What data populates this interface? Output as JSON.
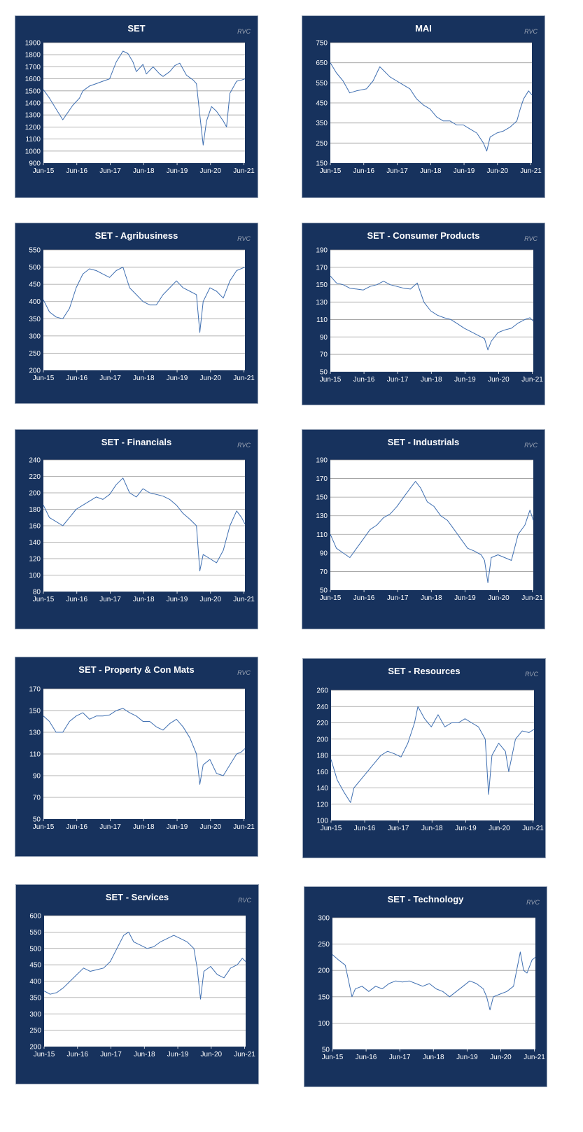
{
  "colors": {
    "panel": "#17325d",
    "plot_bg": "#ffffff",
    "grid": "#9a9a9a",
    "line": "#3f6fb1",
    "text": "#ffffff",
    "brand": "#9aa3b3"
  },
  "brand_label": "RVC",
  "chart_data": [
    {
      "type": "line",
      "title": "SET",
      "xlabel": "",
      "ylabel": "",
      "grid": true,
      "ylim": [
        900,
        1900
      ],
      "yticks": [
        900,
        1000,
        1100,
        1200,
        1300,
        1400,
        1500,
        1600,
        1700,
        1800,
        1900
      ],
      "xticks": [
        "Jun-15",
        "Jun-16",
        "Jun-17",
        "Jun-18",
        "Jun-19",
        "Jun-20",
        "Jun-21"
      ],
      "series": [
        {
          "x": [
            2015.42,
            2015.6,
            2015.8,
            2016.0,
            2016.1,
            2016.3,
            2016.5,
            2016.6,
            2016.8,
            2017.0,
            2017.2,
            2017.4,
            2017.6,
            2017.8,
            2017.95,
            2018.1,
            2018.2,
            2018.4,
            2018.5,
            2018.7,
            2018.9,
            2019.0,
            2019.2,
            2019.35,
            2019.5,
            2019.7,
            2019.9,
            2020.0,
            2020.1,
            2020.2,
            2020.3,
            2020.45,
            2020.6,
            2020.8,
            2020.9,
            2021.0,
            2021.2,
            2021.35,
            2021.45
          ],
          "y": [
            1510,
            1440,
            1350,
            1260,
            1300,
            1380,
            1440,
            1500,
            1540,
            1560,
            1580,
            1600,
            1740,
            1830,
            1810,
            1740,
            1660,
            1720,
            1640,
            1700,
            1640,
            1620,
            1660,
            1710,
            1730,
            1630,
            1590,
            1560,
            1300,
            1050,
            1250,
            1370,
            1330,
            1250,
            1200,
            1480,
            1580,
            1590,
            1600
          ]
        }
      ]
    },
    {
      "type": "line",
      "title": "MAI",
      "xlabel": "",
      "ylabel": "",
      "grid": true,
      "ylim": [
        150,
        750
      ],
      "yticks": [
        150,
        250,
        350,
        450,
        550,
        650,
        750
      ],
      "xticks": [
        "Jun-15",
        "Jun-16",
        "Jun-17",
        "Jun-18",
        "Jun-19",
        "Jun-20",
        "Jun-21"
      ],
      "series": [
        {
          "x": [
            2015.42,
            2015.6,
            2015.8,
            2016.0,
            2016.2,
            2016.5,
            2016.7,
            2016.9,
            2017.2,
            2017.4,
            2017.6,
            2017.8,
            2018.0,
            2018.2,
            2018.4,
            2018.6,
            2018.8,
            2019.0,
            2019.2,
            2019.4,
            2019.6,
            2019.8,
            2020.0,
            2020.1,
            2020.2,
            2020.4,
            2020.6,
            2020.8,
            2021.0,
            2021.1,
            2021.2,
            2021.35,
            2021.45
          ],
          "y": [
            650,
            600,
            560,
            500,
            510,
            520,
            560,
            630,
            580,
            560,
            540,
            520,
            470,
            440,
            420,
            380,
            360,
            360,
            340,
            340,
            320,
            300,
            250,
            210,
            280,
            300,
            310,
            330,
            360,
            420,
            470,
            510,
            490
          ]
        }
      ]
    },
    {
      "type": "line",
      "title": "SET - Agribusiness",
      "xlabel": "",
      "ylabel": "",
      "grid": true,
      "ylim": [
        200,
        550
      ],
      "yticks": [
        200,
        250,
        300,
        350,
        400,
        450,
        500,
        550
      ],
      "xticks": [
        "Jun-15",
        "Jun-16",
        "Jun-17",
        "Jun-18",
        "Jun-19",
        "Jun-20",
        "Jun-21"
      ],
      "series": [
        {
          "x": [
            2015.42,
            2015.6,
            2015.8,
            2016.0,
            2016.2,
            2016.4,
            2016.6,
            2016.8,
            2017.0,
            2017.2,
            2017.4,
            2017.6,
            2017.8,
            2018.0,
            2018.2,
            2018.4,
            2018.6,
            2018.8,
            2019.0,
            2019.2,
            2019.4,
            2019.6,
            2019.8,
            2020.0,
            2020.1,
            2020.2,
            2020.4,
            2020.6,
            2020.8,
            2021.0,
            2021.2,
            2021.45
          ],
          "y": [
            405,
            370,
            355,
            350,
            380,
            440,
            480,
            495,
            490,
            480,
            470,
            490,
            500,
            440,
            420,
            400,
            390,
            390,
            420,
            440,
            460,
            440,
            430,
            420,
            310,
            400,
            440,
            430,
            410,
            460,
            490,
            500
          ]
        }
      ]
    },
    {
      "type": "line",
      "title": "SET - Consumer Products",
      "xlabel": "",
      "ylabel": "",
      "grid": true,
      "ylim": [
        50,
        190
      ],
      "yticks": [
        50,
        70,
        90,
        110,
        130,
        150,
        170,
        190
      ],
      "xticks": [
        "Jun-15",
        "Jun-16",
        "Jun-17",
        "Jun-18",
        "Jun-19",
        "Jun-20",
        "Jun-21"
      ],
      "series": [
        {
          "x": [
            2015.42,
            2015.6,
            2015.8,
            2016.0,
            2016.2,
            2016.4,
            2016.6,
            2016.8,
            2017.0,
            2017.2,
            2017.4,
            2017.6,
            2017.8,
            2018.0,
            2018.2,
            2018.4,
            2018.6,
            2018.8,
            2019.0,
            2019.2,
            2019.4,
            2019.6,
            2019.8,
            2020.0,
            2020.1,
            2020.2,
            2020.4,
            2020.6,
            2020.8,
            2021.0,
            2021.2,
            2021.35,
            2021.45
          ],
          "y": [
            160,
            152,
            150,
            146,
            145,
            144,
            148,
            150,
            154,
            150,
            148,
            146,
            145,
            152,
            130,
            120,
            115,
            112,
            110,
            105,
            100,
            96,
            92,
            88,
            75,
            85,
            95,
            98,
            100,
            106,
            110,
            112,
            108
          ]
        }
      ]
    },
    {
      "type": "line",
      "title": "SET - Financials",
      "xlabel": "",
      "ylabel": "",
      "grid": true,
      "ylim": [
        80,
        240
      ],
      "yticks": [
        80,
        100,
        120,
        140,
        160,
        180,
        200,
        220,
        240
      ],
      "xticks": [
        "Jun-15",
        "Jun-16",
        "Jun-17",
        "Jun-18",
        "Jun-19",
        "Jun-20",
        "Jun-21"
      ],
      "series": [
        {
          "x": [
            2015.42,
            2015.6,
            2015.8,
            2016.0,
            2016.2,
            2016.4,
            2016.6,
            2016.8,
            2017.0,
            2017.2,
            2017.4,
            2017.6,
            2017.8,
            2018.0,
            2018.2,
            2018.4,
            2018.6,
            2018.8,
            2019.0,
            2019.2,
            2019.4,
            2019.6,
            2019.8,
            2020.0,
            2020.1,
            2020.2,
            2020.4,
            2020.6,
            2020.8,
            2021.0,
            2021.2,
            2021.35,
            2021.45
          ],
          "y": [
            185,
            170,
            165,
            160,
            170,
            180,
            185,
            190,
            195,
            192,
            198,
            210,
            218,
            200,
            195,
            205,
            200,
            198,
            196,
            192,
            185,
            175,
            168,
            160,
            105,
            125,
            120,
            115,
            130,
            160,
            178,
            170,
            162
          ]
        }
      ]
    },
    {
      "type": "line",
      "title": "SET - Industrials",
      "xlabel": "",
      "ylabel": "",
      "grid": true,
      "ylim": [
        50,
        190
      ],
      "yticks": [
        50,
        70,
        90,
        110,
        130,
        150,
        170,
        190
      ],
      "xticks": [
        "Jun-15",
        "Jun-16",
        "Jun-17",
        "Jun-18",
        "Jun-19",
        "Jun-20",
        "Jun-21"
      ],
      "series": [
        {
          "x": [
            2015.42,
            2015.6,
            2015.8,
            2016.0,
            2016.2,
            2016.4,
            2016.6,
            2016.8,
            2017.0,
            2017.2,
            2017.4,
            2017.6,
            2017.8,
            2017.95,
            2018.1,
            2018.3,
            2018.5,
            2018.7,
            2018.9,
            2019.1,
            2019.3,
            2019.5,
            2019.7,
            2019.9,
            2020.0,
            2020.1,
            2020.2,
            2020.4,
            2020.6,
            2020.8,
            2021.0,
            2021.2,
            2021.35,
            2021.45
          ],
          "y": [
            110,
            95,
            90,
            85,
            95,
            105,
            115,
            120,
            128,
            132,
            140,
            150,
            160,
            167,
            160,
            145,
            140,
            130,
            125,
            115,
            105,
            95,
            92,
            88,
            82,
            58,
            85,
            88,
            85,
            82,
            110,
            120,
            136,
            125
          ]
        }
      ]
    },
    {
      "type": "line",
      "title": "SET - Property & Con Mats",
      "xlabel": "",
      "ylabel": "",
      "grid": true,
      "ylim": [
        50,
        170
      ],
      "yticks": [
        50,
        70,
        90,
        110,
        130,
        150,
        170
      ],
      "xticks": [
        "Jun-15",
        "Jun-16",
        "Jun-17",
        "Jun-18",
        "Jun-19",
        "Jun-20",
        "Jun-21"
      ],
      "series": [
        {
          "x": [
            2015.42,
            2015.6,
            2015.8,
            2016.0,
            2016.2,
            2016.4,
            2016.6,
            2016.8,
            2017.0,
            2017.2,
            2017.4,
            2017.6,
            2017.8,
            2018.0,
            2018.2,
            2018.4,
            2018.6,
            2018.8,
            2019.0,
            2019.2,
            2019.4,
            2019.6,
            2019.8,
            2020.0,
            2020.1,
            2020.2,
            2020.4,
            2020.6,
            2020.8,
            2021.0,
            2021.2,
            2021.35,
            2021.45
          ],
          "y": [
            145,
            140,
            130,
            130,
            140,
            145,
            148,
            142,
            145,
            145,
            146,
            150,
            152,
            148,
            145,
            140,
            140,
            135,
            132,
            138,
            142,
            135,
            125,
            110,
            82,
            100,
            105,
            92,
            90,
            100,
            110,
            112,
            115
          ]
        }
      ]
    },
    {
      "type": "line",
      "title": "SET - Resources",
      "xlabel": "",
      "ylabel": "",
      "grid": true,
      "ylim": [
        100,
        260
      ],
      "yticks": [
        100,
        120,
        140,
        160,
        180,
        200,
        220,
        240,
        260
      ],
      "xticks": [
        "Jun-15",
        "Jun-16",
        "Jun-17",
        "Jun-18",
        "Jun-19",
        "Jun-20",
        "Jun-21"
      ],
      "series": [
        {
          "x": [
            2015.42,
            2015.6,
            2015.8,
            2016.0,
            2016.1,
            2016.3,
            2016.5,
            2016.7,
            2016.9,
            2017.1,
            2017.3,
            2017.5,
            2017.7,
            2017.9,
            2018.0,
            2018.2,
            2018.4,
            2018.6,
            2018.8,
            2019.0,
            2019.2,
            2019.4,
            2019.6,
            2019.8,
            2020.0,
            2020.1,
            2020.2,
            2020.4,
            2020.6,
            2020.7,
            2020.9,
            2021.1,
            2021.3,
            2021.45
          ],
          "y": [
            175,
            150,
            135,
            122,
            140,
            150,
            160,
            170,
            180,
            185,
            182,
            178,
            195,
            220,
            240,
            225,
            215,
            230,
            215,
            220,
            220,
            225,
            220,
            215,
            200,
            132,
            180,
            195,
            185,
            160,
            200,
            210,
            208,
            212
          ]
        }
      ]
    },
    {
      "type": "line",
      "title": "SET - Services",
      "xlabel": "",
      "ylabel": "",
      "grid": true,
      "ylim": [
        200,
        600
      ],
      "yticks": [
        200,
        250,
        300,
        350,
        400,
        450,
        500,
        550,
        600
      ],
      "xticks": [
        "Jun-15",
        "Jun-16",
        "Jun-17",
        "Jun-18",
        "Jun-19",
        "Jun-20",
        "Jun-21"
      ],
      "series": [
        {
          "x": [
            2015.42,
            2015.6,
            2015.8,
            2016.0,
            2016.2,
            2016.4,
            2016.6,
            2016.8,
            2017.0,
            2017.2,
            2017.4,
            2017.6,
            2017.8,
            2017.95,
            2018.1,
            2018.3,
            2018.5,
            2018.7,
            2018.9,
            2019.1,
            2019.3,
            2019.5,
            2019.7,
            2019.9,
            2020.0,
            2020.1,
            2020.2,
            2020.4,
            2020.6,
            2020.8,
            2021.0,
            2021.2,
            2021.35,
            2021.45
          ],
          "y": [
            370,
            360,
            365,
            380,
            400,
            420,
            440,
            430,
            435,
            440,
            460,
            500,
            540,
            550,
            520,
            510,
            500,
            505,
            520,
            530,
            540,
            530,
            520,
            500,
            440,
            345,
            430,
            445,
            420,
            410,
            440,
            450,
            470,
            460
          ]
        }
      ]
    },
    {
      "type": "line",
      "title": "SET - Technology",
      "xlabel": "",
      "ylabel": "",
      "grid": true,
      "ylim": [
        50,
        300
      ],
      "yticks": [
        50,
        100,
        150,
        200,
        250,
        300
      ],
      "xticks": [
        "Jun-15",
        "Jun-16",
        "Jun-17",
        "Jun-18",
        "Jun-19",
        "Jun-20",
        "Jun-21"
      ],
      "series": [
        {
          "x": [
            2015.42,
            2015.6,
            2015.8,
            2016.0,
            2016.1,
            2016.3,
            2016.5,
            2016.7,
            2016.9,
            2017.1,
            2017.3,
            2017.5,
            2017.7,
            2017.9,
            2018.1,
            2018.3,
            2018.5,
            2018.7,
            2018.9,
            2019.1,
            2019.3,
            2019.5,
            2019.7,
            2019.9,
            2020.0,
            2020.1,
            2020.2,
            2020.4,
            2020.6,
            2020.8,
            2021.0,
            2021.1,
            2021.2,
            2021.35,
            2021.45
          ],
          "y": [
            230,
            220,
            210,
            150,
            165,
            170,
            160,
            170,
            165,
            175,
            180,
            178,
            180,
            175,
            170,
            175,
            165,
            160,
            150,
            160,
            170,
            180,
            175,
            165,
            150,
            125,
            150,
            155,
            160,
            170,
            235,
            200,
            195,
            220,
            225
          ]
        }
      ]
    }
  ]
}
